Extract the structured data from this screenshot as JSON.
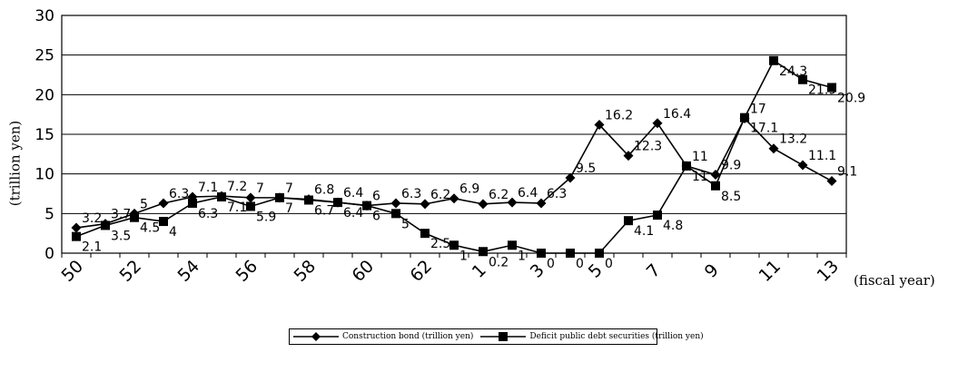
{
  "chart_data": {
    "type": "line",
    "title": "",
    "ylabel": "(trillion yen)",
    "xlabel": "(fiscal year)",
    "ylim": [
      0,
      30
    ],
    "yticks": [
      0,
      5,
      10,
      15,
      20,
      25,
      30
    ],
    "grid": "horizontal",
    "legend_position": "bottom-center",
    "x": [
      "50",
      "51",
      "52",
      "53",
      "54",
      "55",
      "56",
      "57",
      "58",
      "59",
      "60",
      "61",
      "62",
      "63",
      "1",
      "2",
      "3",
      "4",
      "5",
      "6",
      "7",
      "8",
      "9",
      "10",
      "11",
      "12",
      "13"
    ],
    "xtick_labels": [
      "50",
      "52",
      "54",
      "56",
      "58",
      "60",
      "62",
      "1",
      "3",
      "5",
      "7",
      "9",
      "11",
      "13"
    ],
    "xtick_indices": [
      0,
      2,
      4,
      6,
      8,
      10,
      12,
      14,
      16,
      18,
      20,
      22,
      24,
      26
    ],
    "series": [
      {
        "name": "Construction bond (trillion yen)",
        "marker": "diamond",
        "color": "#000000",
        "values": [
          3.2,
          3.7,
          5,
          6.3,
          7.1,
          7.2,
          7,
          7,
          6.8,
          6.4,
          6,
          6.3,
          6.2,
          6.9,
          6.2,
          6.4,
          6.3,
          9.5,
          16.2,
          12.3,
          16.4,
          11,
          9.9,
          17,
          13.2,
          11.1,
          9.1
        ],
        "labels": [
          "3.2",
          "3.7",
          "5",
          "6.3",
          "7.1",
          "7.2",
          "7",
          "7",
          "6.8",
          "6.4",
          "6",
          "6.3",
          "6.2",
          "6.9",
          "6.2",
          "6.4",
          "6.3",
          "9.5",
          "16.2",
          "12.3",
          "16.4",
          "11",
          "9.9",
          "17",
          "13.2",
          "11.1",
          "9.1"
        ]
      },
      {
        "name": "Deficit public debt securities (trillion yen)",
        "marker": "square",
        "color": "#000000",
        "values": [
          2.1,
          3.5,
          4.5,
          4,
          6.3,
          7.1,
          5.9,
          7,
          6.7,
          6.4,
          6,
          5,
          2.5,
          1,
          0.2,
          1,
          0,
          0,
          0,
          4.1,
          4.8,
          11,
          8.5,
          17.1,
          24.3,
          21.9,
          20.9
        ],
        "labels": [
          "2.1",
          "3.5",
          "4.5",
          "4",
          "6.3",
          "7.1",
          "5.9",
          "7",
          "6.7",
          "6.4",
          "6",
          "5",
          "2.5",
          "1",
          "0.2",
          "1",
          "0",
          "0",
          "0",
          "4.1",
          "4.8",
          "11",
          "8.5",
          "17.1",
          "24.3",
          "21.9",
          "20.9"
        ]
      }
    ]
  }
}
